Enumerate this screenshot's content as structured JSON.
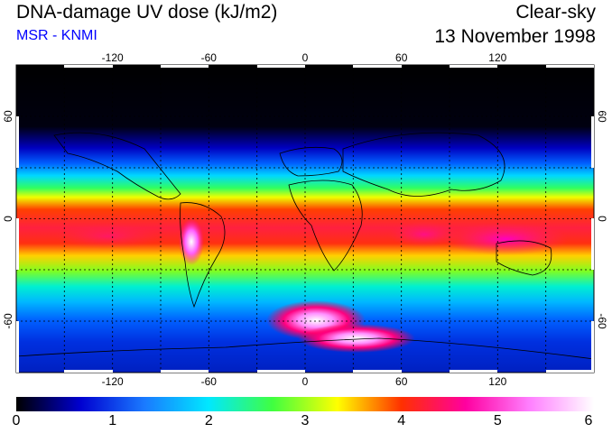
{
  "header": {
    "title": "DNA-damage UV dose (kJ/m2)",
    "source": "MSR - KNMI",
    "condition": "Clear-sky",
    "date": "13 November 1998"
  },
  "map": {
    "projection": "equirectangular",
    "lon_range": [
      -180,
      180
    ],
    "lat_range": [
      -90,
      90
    ],
    "lon_ticks": [
      "-120",
      "-60",
      "0",
      "60",
      "120"
    ],
    "lat_ticks_left": [
      "60",
      "0",
      "-60"
    ],
    "lat_ticks_right": [
      "60",
      "0",
      "-60"
    ],
    "grid": "dotted every 30 degrees",
    "colors": {
      "background_high_lat_north": "#000000",
      "equatorial_band": "#ff2040",
      "peak_white": "#ffffff"
    }
  },
  "colorbar": {
    "min": 0,
    "max": 6,
    "labels": [
      "0",
      "1",
      "2",
      "3",
      "4",
      "5",
      "6"
    ],
    "stops": [
      "#000000",
      "#0000d0",
      "#1a7aff",
      "#00e8ff",
      "#40ff40",
      "#ffff00",
      "#ff3000",
      "#ff00a0",
      "#ff80ff",
      "#ffffff"
    ]
  }
}
